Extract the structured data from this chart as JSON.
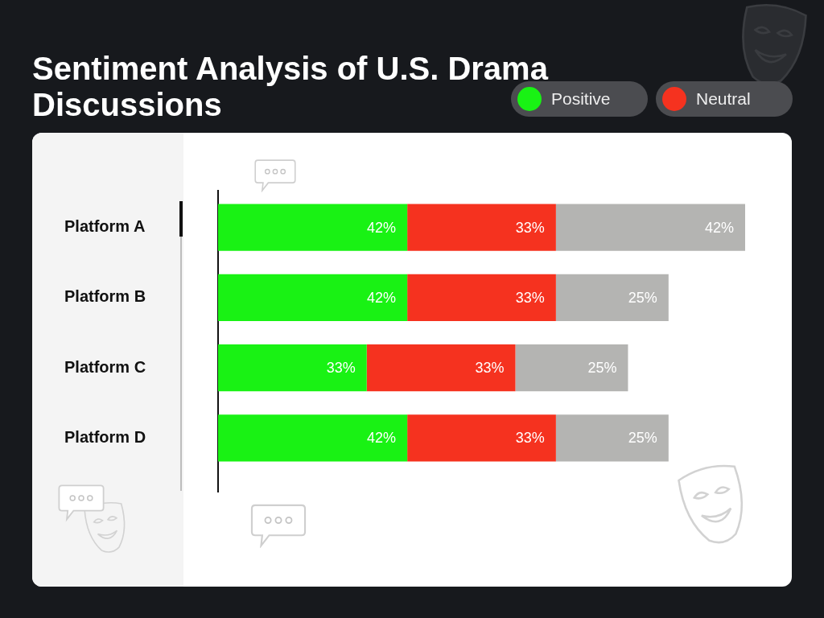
{
  "chart_data": {
    "type": "bar",
    "orientation": "horizontal",
    "stacked": true,
    "title": "Sentiment Analysis of U.S. Drama Discussions",
    "categories": [
      "Platform A",
      "Platform B",
      "Platform C",
      "Platform D"
    ],
    "series": [
      {
        "name": "Positive",
        "color": "#19f214",
        "values": [
          42,
          42,
          33,
          42
        ],
        "value_labels": [
          "42%",
          "42%",
          "33%",
          "42%"
        ]
      },
      {
        "name": "Neutral",
        "color": "#f5321f",
        "values": [
          33,
          33,
          33,
          33
        ],
        "value_labels": [
          "33%",
          "33%",
          "33%",
          "33%"
        ]
      },
      {
        "color": "#b4b4b2",
        "values": [
          42,
          25,
          25,
          25
        ],
        "value_labels": [
          "42%",
          "25%",
          "25%",
          "25%"
        ]
      }
    ],
    "legend": "top right",
    "tick_labels": "y"
  }
}
